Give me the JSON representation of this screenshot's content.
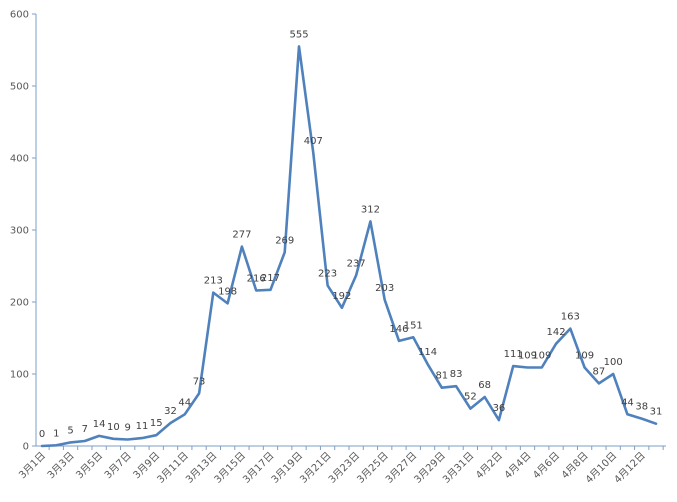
{
  "chart_data": {
    "type": "line",
    "title": "",
    "xlabel": "",
    "ylabel": "",
    "ylim": [
      0,
      600
    ],
    "yticks": [
      0,
      100,
      200,
      300,
      400,
      500,
      600
    ],
    "grid": false,
    "line_color": "#4f81bd",
    "x": [
      "3月1日",
      "3月2日",
      "3月3日",
      "3月4日",
      "3月5日",
      "3月6日",
      "3月7日",
      "3月8日",
      "3月9日",
      "3月10日",
      "3月11日",
      "3月12日",
      "3月13日",
      "3月14日",
      "3月15日",
      "3月16日",
      "3月17日",
      "3月18日",
      "3月19日",
      "3月20日",
      "3月21日",
      "3月22日",
      "3月23日",
      "3月24日",
      "3月25日",
      "3月26日",
      "3月27日",
      "3月28日",
      "3月29日",
      "3月30日",
      "3月31日",
      "4月1日",
      "4月2日",
      "4月3日",
      "4月4日",
      "4月5日",
      "4月6日",
      "4月7日",
      "4月8日",
      "4月9日",
      "4月10日",
      "4月11日",
      "4月12日",
      "4月13日"
    ],
    "xtick_labels": [
      "3月1日",
      "3月3日",
      "3月5日",
      "3月7日",
      "3月9日",
      "3月11日",
      "3月13日",
      "3月15日",
      "3月17日",
      "3月19日",
      "3月21日",
      "3月23日",
      "3月25日",
      "3月27日",
      "3月29日",
      "3月31日",
      "4月2日",
      "4月4日",
      "4月6日",
      "4月8日",
      "4月10日",
      "4月12日"
    ],
    "series": [
      {
        "values": [
          0,
          1,
          5,
          7,
          14,
          10,
          9,
          11,
          15,
          32,
          44,
          73,
          213,
          198,
          277,
          216,
          217,
          269,
          555,
          407,
          223,
          192,
          237,
          312,
          203,
          146,
          151,
          114,
          81,
          83,
          52,
          68,
          36,
          111,
          109,
          109,
          142,
          163,
          109,
          87,
          100,
          44,
          38,
          31
        ]
      }
    ]
  }
}
